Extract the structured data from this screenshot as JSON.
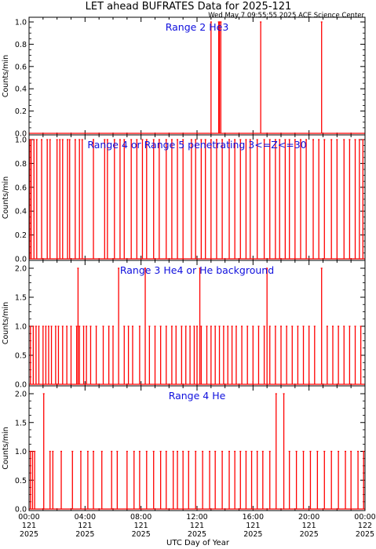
{
  "title": "LET ahead BUFRATES Data for 2025-121",
  "timestamp": "Wed May  7 09:55:55 2025 ACE Science Center",
  "xlabel": "UTC Day of Year",
  "colors": {
    "data": "#ff0000",
    "panel_title": "#1010dd",
    "axes": "#000000"
  },
  "chart_data": [
    {
      "type": "line",
      "title": "Range 2 He3",
      "ylabel": "Counts/min",
      "ylim": [
        0,
        1
      ],
      "yticks": [
        "0.0",
        "0.2",
        "0.4",
        "0.6",
        "0.8",
        "1.0"
      ],
      "xlim": [
        0,
        24
      ],
      "x_units": "hours UTC on day 121 of 2025",
      "baseline": 0,
      "spikes": [
        {
          "x": 13.0,
          "y": 1
        },
        {
          "x": 13.55,
          "y": 1
        },
        {
          "x": 13.6,
          "y": 1
        },
        {
          "x": 13.7,
          "y": 1
        },
        {
          "x": 16.55,
          "y": 1
        },
        {
          "x": 20.9,
          "y": 1
        }
      ]
    },
    {
      "type": "line",
      "title": "Range 4 or Range 5 penetrating 3<=Z<=30",
      "ylabel": "Counts/min",
      "ylim": [
        0,
        1
      ],
      "yticks": [
        "0.0",
        "0.2",
        "0.4",
        "0.6",
        "0.8",
        "1.0"
      ],
      "xlim": [
        0,
        24
      ],
      "x_units": "hours UTC on day 121 of 2025",
      "baseline": 0,
      "spikes": [
        {
          "x": 0.05,
          "y": 1
        },
        {
          "x": 0.15,
          "y": 1
        },
        {
          "x": 0.35,
          "y": 1
        },
        {
          "x": 0.55,
          "y": 1
        },
        {
          "x": 0.9,
          "y": 1
        },
        {
          "x": 1.3,
          "y": 1
        },
        {
          "x": 1.5,
          "y": 1
        },
        {
          "x": 2.0,
          "y": 1
        },
        {
          "x": 2.2,
          "y": 1
        },
        {
          "x": 2.4,
          "y": 1
        },
        {
          "x": 2.75,
          "y": 1
        },
        {
          "x": 2.9,
          "y": 1
        },
        {
          "x": 3.3,
          "y": 1
        },
        {
          "x": 3.6,
          "y": 1
        },
        {
          "x": 3.8,
          "y": 1
        },
        {
          "x": 4.6,
          "y": 1
        },
        {
          "x": 5.4,
          "y": 1
        },
        {
          "x": 5.6,
          "y": 1
        },
        {
          "x": 6.1,
          "y": 1
        },
        {
          "x": 6.5,
          "y": 1
        },
        {
          "x": 6.8,
          "y": 1
        },
        {
          "x": 7.3,
          "y": 1
        },
        {
          "x": 7.7,
          "y": 1
        },
        {
          "x": 8.1,
          "y": 1
        },
        {
          "x": 8.4,
          "y": 1
        },
        {
          "x": 8.9,
          "y": 1
        },
        {
          "x": 9.3,
          "y": 1
        },
        {
          "x": 9.8,
          "y": 1
        },
        {
          "x": 10.2,
          "y": 1
        },
        {
          "x": 10.6,
          "y": 1
        },
        {
          "x": 11.0,
          "y": 1
        },
        {
          "x": 11.6,
          "y": 1
        },
        {
          "x": 11.9,
          "y": 1
        },
        {
          "x": 12.3,
          "y": 1
        },
        {
          "x": 12.6,
          "y": 1
        },
        {
          "x": 13.0,
          "y": 1
        },
        {
          "x": 13.4,
          "y": 1
        },
        {
          "x": 13.8,
          "y": 1
        },
        {
          "x": 14.3,
          "y": 1
        },
        {
          "x": 14.7,
          "y": 1
        },
        {
          "x": 15.1,
          "y": 1
        },
        {
          "x": 15.5,
          "y": 1
        },
        {
          "x": 15.8,
          "y": 1
        },
        {
          "x": 16.3,
          "y": 1
        },
        {
          "x": 16.8,
          "y": 1
        },
        {
          "x": 17.2,
          "y": 1
        },
        {
          "x": 17.6,
          "y": 1
        },
        {
          "x": 17.9,
          "y": 1
        },
        {
          "x": 18.3,
          "y": 1
        },
        {
          "x": 18.6,
          "y": 1
        },
        {
          "x": 19.0,
          "y": 1
        },
        {
          "x": 19.4,
          "y": 1
        },
        {
          "x": 19.8,
          "y": 1
        },
        {
          "x": 20.3,
          "y": 1
        },
        {
          "x": 20.7,
          "y": 1
        },
        {
          "x": 21.1,
          "y": 1
        },
        {
          "x": 21.6,
          "y": 1
        },
        {
          "x": 22.0,
          "y": 1
        },
        {
          "x": 22.5,
          "y": 1
        },
        {
          "x": 22.9,
          "y": 1
        },
        {
          "x": 23.3,
          "y": 1
        },
        {
          "x": 23.6,
          "y": 1
        },
        {
          "x": 23.85,
          "y": 1
        }
      ]
    },
    {
      "type": "line",
      "title": "Range 3 He4 or He background",
      "ylabel": "Counts/min",
      "ylim": [
        0,
        2
      ],
      "yticks": [
        "0.0",
        "0.5",
        "1.0",
        "1.5",
        "2.0"
      ],
      "xlim": [
        0,
        24
      ],
      "x_units": "hours UTC on day 121 of 2025",
      "baseline": 0,
      "spikes": [
        {
          "x": 0.1,
          "y": 1
        },
        {
          "x": 0.3,
          "y": 1
        },
        {
          "x": 0.5,
          "y": 1
        },
        {
          "x": 0.7,
          "y": 1
        },
        {
          "x": 1.0,
          "y": 1
        },
        {
          "x": 1.2,
          "y": 1
        },
        {
          "x": 1.4,
          "y": 1
        },
        {
          "x": 1.6,
          "y": 1
        },
        {
          "x": 1.9,
          "y": 1
        },
        {
          "x": 2.1,
          "y": 1
        },
        {
          "x": 2.4,
          "y": 1
        },
        {
          "x": 2.7,
          "y": 1
        },
        {
          "x": 3.0,
          "y": 1
        },
        {
          "x": 3.4,
          "y": 1
        },
        {
          "x": 3.6,
          "y": 1
        },
        {
          "x": 3.9,
          "y": 1
        },
        {
          "x": 4.1,
          "y": 1
        },
        {
          "x": 4.4,
          "y": 1
        },
        {
          "x": 4.8,
          "y": 1
        },
        {
          "x": 5.3,
          "y": 1
        },
        {
          "x": 5.7,
          "y": 1
        },
        {
          "x": 6.0,
          "y": 1
        },
        {
          "x": 6.4,
          "y": 2
        },
        {
          "x": 6.8,
          "y": 1
        },
        {
          "x": 7.1,
          "y": 1
        },
        {
          "x": 7.4,
          "y": 1
        },
        {
          "x": 7.9,
          "y": 1
        },
        {
          "x": 8.3,
          "y": 2
        },
        {
          "x": 8.6,
          "y": 1
        },
        {
          "x": 9.0,
          "y": 1
        },
        {
          "x": 9.4,
          "y": 1
        },
        {
          "x": 9.8,
          "y": 1
        },
        {
          "x": 10.2,
          "y": 1
        },
        {
          "x": 10.5,
          "y": 1
        },
        {
          "x": 10.9,
          "y": 1
        },
        {
          "x": 11.2,
          "y": 1
        },
        {
          "x": 11.5,
          "y": 1
        },
        {
          "x": 11.8,
          "y": 1
        },
        {
          "x": 12.0,
          "y": 1
        },
        {
          "x": 12.3,
          "y": 1
        },
        {
          "x": 12.7,
          "y": 1
        },
        {
          "x": 13.0,
          "y": 1
        },
        {
          "x": 13.3,
          "y": 1
        },
        {
          "x": 13.6,
          "y": 1
        },
        {
          "x": 13.9,
          "y": 1
        },
        {
          "x": 14.2,
          "y": 1
        },
        {
          "x": 14.5,
          "y": 1
        },
        {
          "x": 14.8,
          "y": 1
        },
        {
          "x": 15.2,
          "y": 1
        },
        {
          "x": 15.6,
          "y": 1
        },
        {
          "x": 16.0,
          "y": 1
        },
        {
          "x": 16.4,
          "y": 1
        },
        {
          "x": 16.8,
          "y": 1
        },
        {
          "x": 17.2,
          "y": 1
        },
        {
          "x": 17.6,
          "y": 1
        },
        {
          "x": 18.0,
          "y": 1
        },
        {
          "x": 18.4,
          "y": 1
        },
        {
          "x": 18.8,
          "y": 1
        },
        {
          "x": 19.2,
          "y": 1
        },
        {
          "x": 19.6,
          "y": 1
        },
        {
          "x": 20.0,
          "y": 1
        },
        {
          "x": 20.4,
          "y": 1
        },
        {
          "x": 20.9,
          "y": 2
        },
        {
          "x": 21.3,
          "y": 1
        },
        {
          "x": 21.7,
          "y": 1
        },
        {
          "x": 22.1,
          "y": 1
        },
        {
          "x": 22.5,
          "y": 1
        },
        {
          "x": 22.9,
          "y": 1
        },
        {
          "x": 23.3,
          "y": 1
        },
        {
          "x": 23.7,
          "y": 1
        },
        {
          "x": 3.5,
          "y": 2
        },
        {
          "x": 12.2,
          "y": 2
        },
        {
          "x": 17.0,
          "y": 2
        }
      ]
    },
    {
      "type": "line",
      "title": "Range 4 He",
      "ylabel": "Counts/min",
      "ylim": [
        0,
        2
      ],
      "yticks": [
        "0.0",
        "0.5",
        "1.0",
        "1.5",
        "2.0"
      ],
      "xlim": [
        0,
        24
      ],
      "x_units": "hours UTC on day 121 of 2025",
      "baseline": 0,
      "spikes": [
        {
          "x": 0.1,
          "y": 1
        },
        {
          "x": 0.25,
          "y": 1
        },
        {
          "x": 0.4,
          "y": 1
        },
        {
          "x": 1.05,
          "y": 2
        },
        {
          "x": 1.5,
          "y": 1
        },
        {
          "x": 1.7,
          "y": 1
        },
        {
          "x": 2.3,
          "y": 1
        },
        {
          "x": 3.1,
          "y": 1
        },
        {
          "x": 3.7,
          "y": 1
        },
        {
          "x": 4.2,
          "y": 1
        },
        {
          "x": 4.6,
          "y": 1
        },
        {
          "x": 5.2,
          "y": 1
        },
        {
          "x": 5.9,
          "y": 1
        },
        {
          "x": 6.3,
          "y": 1
        },
        {
          "x": 7.0,
          "y": 1
        },
        {
          "x": 7.5,
          "y": 1
        },
        {
          "x": 7.9,
          "y": 1
        },
        {
          "x": 8.4,
          "y": 1
        },
        {
          "x": 8.9,
          "y": 1
        },
        {
          "x": 9.4,
          "y": 1
        },
        {
          "x": 9.8,
          "y": 1
        },
        {
          "x": 10.3,
          "y": 1
        },
        {
          "x": 10.6,
          "y": 1
        },
        {
          "x": 11.0,
          "y": 1
        },
        {
          "x": 11.4,
          "y": 1
        },
        {
          "x": 11.9,
          "y": 1
        },
        {
          "x": 12.4,
          "y": 1
        },
        {
          "x": 12.9,
          "y": 1
        },
        {
          "x": 13.3,
          "y": 1
        },
        {
          "x": 13.8,
          "y": 1
        },
        {
          "x": 14.3,
          "y": 1
        },
        {
          "x": 14.7,
          "y": 1
        },
        {
          "x": 15.1,
          "y": 1
        },
        {
          "x": 15.5,
          "y": 1
        },
        {
          "x": 15.9,
          "y": 1
        },
        {
          "x": 16.3,
          "y": 1
        },
        {
          "x": 16.7,
          "y": 1
        },
        {
          "x": 17.2,
          "y": 1
        },
        {
          "x": 17.65,
          "y": 2
        },
        {
          "x": 18.2,
          "y": 2
        },
        {
          "x": 18.6,
          "y": 1
        },
        {
          "x": 19.1,
          "y": 1
        },
        {
          "x": 19.6,
          "y": 1
        },
        {
          "x": 20.1,
          "y": 1
        },
        {
          "x": 20.6,
          "y": 1
        },
        {
          "x": 21.1,
          "y": 1
        },
        {
          "x": 21.6,
          "y": 1
        },
        {
          "x": 22.1,
          "y": 1
        },
        {
          "x": 22.6,
          "y": 1
        },
        {
          "x": 23.0,
          "y": 1
        },
        {
          "x": 23.5,
          "y": 1
        },
        {
          "x": 23.9,
          "y": 1
        }
      ]
    }
  ],
  "x_axis": {
    "ticks": [
      {
        "x": 0,
        "time": "00:00",
        "day": "121",
        "year": "2025"
      },
      {
        "x": 4,
        "time": "04:00",
        "day": "121",
        "year": "2025"
      },
      {
        "x": 8,
        "time": "08:00",
        "day": "121",
        "year": "2025"
      },
      {
        "x": 12,
        "time": "12:00",
        "day": "121",
        "year": "2025"
      },
      {
        "x": 16,
        "time": "16:00",
        "day": "121",
        "year": "2025"
      },
      {
        "x": 20,
        "time": "20:00",
        "day": "121",
        "year": "2025"
      },
      {
        "x": 24,
        "time": "00:00",
        "day": "122",
        "year": "2025"
      }
    ]
  }
}
